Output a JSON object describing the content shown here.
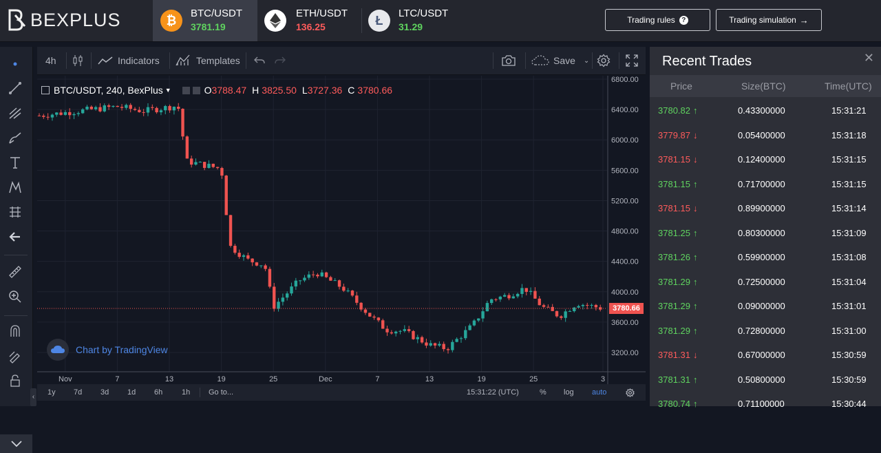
{
  "brand": {
    "name": "BEXPLUS"
  },
  "pairs": [
    {
      "name": "BTC/USDT",
      "price": "3781.19",
      "trend": "up",
      "icon": "bitcoin-icon",
      "color": "#f7931a"
    },
    {
      "name": "ETH/USDT",
      "price": "136.25",
      "trend": "down",
      "icon": "ethereum-icon",
      "color": "#ffffff"
    },
    {
      "name": "LTC/USDT",
      "price": "31.29",
      "trend": "up",
      "icon": "litecoin-icon",
      "color": "#ffffff"
    }
  ],
  "header_buttons": {
    "rules": "Trading rules",
    "simulation": "Trading simulation"
  },
  "chart_toolbar": {
    "interval": "4h",
    "indicators": "Indicators",
    "templates": "Templates",
    "save": "Save"
  },
  "legend": {
    "symbol": "BTC/USDT, 240, BexPlus",
    "o_label": "O",
    "o": "3788.47",
    "h_label": "H",
    "h": "3825.50",
    "l_label": "L",
    "l": "3727.36",
    "c_label": "C",
    "c": "3780.66"
  },
  "watermark": "Chart by TradingView",
  "bottom_bar": {
    "ranges": [
      "1y",
      "7d",
      "3d",
      "1d",
      "6h",
      "1h"
    ],
    "goto": "Go to...",
    "time": "15:31:22 (UTC)",
    "percent": "%",
    "log": "log",
    "auto": "auto"
  },
  "chart_data": {
    "type": "candlestick",
    "ylim": [
      3000,
      6800
    ],
    "y_ticks": [
      "6800.00",
      "6400.00",
      "6000.00",
      "5600.00",
      "5200.00",
      "4800.00",
      "4400.00",
      "4000.00",
      "3600.00",
      "3200.00"
    ],
    "x_ticks": [
      "Nov",
      "7",
      "13",
      "19",
      "25",
      "Dec",
      "7",
      "13",
      "19",
      "25",
      "3"
    ],
    "last_price": "3780.66",
    "colors": {
      "up": "#26a69a",
      "down": "#ef5350"
    },
    "series": [
      {
        "date": "Oct 29",
        "close": 6320
      },
      {
        "date": "Nov 1",
        "close": 6360
      },
      {
        "date": "Nov 7",
        "close": 6440
      },
      {
        "date": "Nov 10",
        "close": 6380
      },
      {
        "date": "Nov 14",
        "close": 6450
      },
      {
        "date": "Nov 15",
        "close": 5720
      },
      {
        "date": "Nov 19",
        "close": 5620
      },
      {
        "date": "Nov 20",
        "close": 4600
      },
      {
        "date": "Nov 22",
        "close": 4420
      },
      {
        "date": "Nov 24",
        "close": 4350
      },
      {
        "date": "Nov 25",
        "close": 3800
      },
      {
        "date": "Nov 28",
        "close": 4150
      },
      {
        "date": "Nov 30",
        "close": 4250
      },
      {
        "date": "Dec 3",
        "close": 4050
      },
      {
        "date": "Dec 6",
        "close": 3700
      },
      {
        "date": "Dec 8",
        "close": 3500
      },
      {
        "date": "Dec 10",
        "close": 3480
      },
      {
        "date": "Dec 13",
        "close": 3300
      },
      {
        "date": "Dec 15",
        "close": 3250
      },
      {
        "date": "Dec 18",
        "close": 3560
      },
      {
        "date": "Dec 20",
        "close": 3900
      },
      {
        "date": "Dec 22",
        "close": 3950
      },
      {
        "date": "Dec 24",
        "close": 4050
      },
      {
        "date": "Dec 26",
        "close": 3800
      },
      {
        "date": "Dec 28",
        "close": 3680
      },
      {
        "date": "Dec 30",
        "close": 3850
      },
      {
        "date": "Jan 2",
        "close": 3780
      }
    ]
  },
  "trades": {
    "title": "Recent Trades",
    "headers": [
      "Price",
      "Size(BTC)",
      "Time(UTC)"
    ],
    "rows": [
      {
        "price": "3780.82",
        "dir": "up",
        "size": "0.43300000",
        "time": "15:31:21"
      },
      {
        "price": "3779.87",
        "dir": "down",
        "size": "0.05400000",
        "time": "15:31:18"
      },
      {
        "price": "3781.15",
        "dir": "down",
        "size": "0.12400000",
        "time": "15:31:15"
      },
      {
        "price": "3781.15",
        "dir": "up",
        "size": "0.71700000",
        "time": "15:31:15"
      },
      {
        "price": "3781.15",
        "dir": "down",
        "size": "0.89900000",
        "time": "15:31:14"
      },
      {
        "price": "3781.25",
        "dir": "up",
        "size": "0.80300000",
        "time": "15:31:09"
      },
      {
        "price": "3781.26",
        "dir": "up",
        "size": "0.59900000",
        "time": "15:31:08"
      },
      {
        "price": "3781.29",
        "dir": "up",
        "size": "0.72500000",
        "time": "15:31:04"
      },
      {
        "price": "3781.29",
        "dir": "up",
        "size": "0.09000000",
        "time": "15:31:01"
      },
      {
        "price": "3781.29",
        "dir": "up",
        "size": "0.72800000",
        "time": "15:31:00"
      },
      {
        "price": "3781.31",
        "dir": "down",
        "size": "0.67000000",
        "time": "15:30:59"
      },
      {
        "price": "3781.31",
        "dir": "up",
        "size": "0.50800000",
        "time": "15:30:59"
      },
      {
        "price": "3780.74",
        "dir": "up",
        "size": "0.71100000",
        "time": "15:30:44"
      }
    ]
  }
}
